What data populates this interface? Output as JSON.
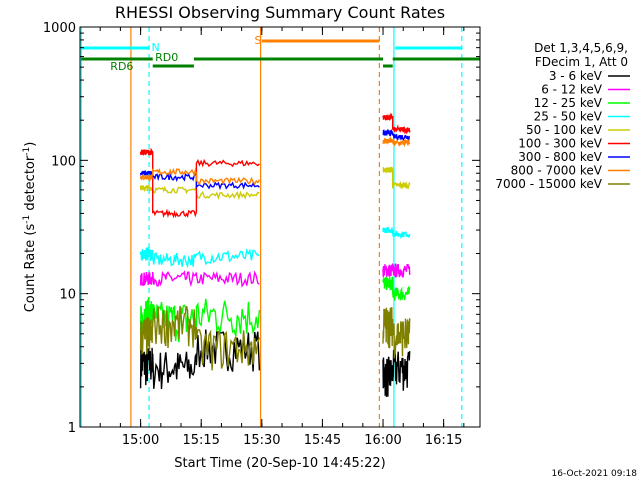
{
  "chart_data": {
    "type": "line",
    "title": "RHESSI Observing Summary Count Rates",
    "xlabel": "Start Time (20-Sep-10 14:45:22)",
    "ylabel_main": "Count Rate (s",
    "ylabel_sup1": "-1",
    "ylabel_mid": " detector",
    "ylabel_sup2": "-1",
    "ylabel_end": ")",
    "yscale": "log",
    "ylim": [
      1,
      1000
    ],
    "xlim_minutes": [
      14.75,
      16.4
    ],
    "x_ticks": [
      {
        "label": "15:00",
        "t": 15.0
      },
      {
        "label": "15:15",
        "t": 15.25
      },
      {
        "label": "15:30",
        "t": 15.5
      },
      {
        "label": "15:45",
        "t": 15.75
      },
      {
        "label": "16:00",
        "t": 16.0
      },
      {
        "label": "16:15",
        "t": 16.25
      }
    ],
    "y_ticks": [
      {
        "label": "1",
        "v": 1
      },
      {
        "label": "10",
        "v": 10
      },
      {
        "label": "100",
        "v": 100
      },
      {
        "label": "1000",
        "v": 1000
      }
    ],
    "legend": {
      "header1": "Det 1,3,4,5,6,9,",
      "header2": "FDecim 1, Att 0"
    },
    "series": [
      {
        "name": "3 - 6 keV",
        "color": "#000000",
        "seg1": 3.0,
        "seg2": 2.8,
        "seg3": 4.0,
        "seg4": 2.5,
        "seg5": 2.8
      },
      {
        "name": "6 - 12 keV",
        "color": "#ff00ff",
        "seg1": 13.0,
        "seg2": 13.0,
        "seg3": 13.0,
        "seg4": 15.0,
        "seg5": 15.0
      },
      {
        "name": "12 - 25 keV",
        "color": "#00ff00",
        "seg1": 7.0,
        "seg2": 6.5,
        "seg3": 7.0,
        "seg4": 12.0,
        "seg5": 10.0
      },
      {
        "name": "25 - 50 keV",
        "color": "#00ffff",
        "seg1": 20.0,
        "seg2": 18.0,
        "seg3": 19.0,
        "seg4": 30.0,
        "seg5": 28.0
      },
      {
        "name": "50 - 100 keV",
        "color": "#cccc00",
        "seg1": 62.0,
        "seg2": 60.0,
        "seg3": 55.0,
        "seg4": 85.0,
        "seg5": 65.0
      },
      {
        "name": "100 - 300 keV",
        "color": "#ff0000",
        "seg1": 115.0,
        "seg2": 40.0,
        "seg3": 95.0,
        "seg4": 210.0,
        "seg5": 170.0
      },
      {
        "name": "300 - 800 keV",
        "color": "#0000ff",
        "seg1": 80.0,
        "seg2": 75.0,
        "seg3": 65.0,
        "seg4": 160.0,
        "seg5": 150.0
      },
      {
        "name": "800 - 7000 keV",
        "color": "#ff8000",
        "seg1": 75.0,
        "seg2": 82.0,
        "seg3": 70.0,
        "seg4": 140.0,
        "seg5": 135.0
      },
      {
        "name": "7000 - 15000 keV",
        "color": "#808000",
        "seg1": 5.0,
        "seg2": 6.0,
        "seg3": 4.0,
        "seg4": 6.0,
        "seg5": 5.0
      }
    ],
    "segments_time": [
      {
        "start": 15.0,
        "end": 15.05
      },
      {
        "start": 15.05,
        "end": 15.23
      },
      {
        "start": 15.23,
        "end": 15.49
      },
      {
        "start": 16.0,
        "end": 16.04
      },
      {
        "start": 16.04,
        "end": 16.11
      }
    ],
    "flags": {
      "N_label": "N",
      "S_label": "S",
      "RD0_label": "RD0",
      "RD6_label": "RD6"
    },
    "timestamp": "16-Oct-2021 09:18"
  }
}
